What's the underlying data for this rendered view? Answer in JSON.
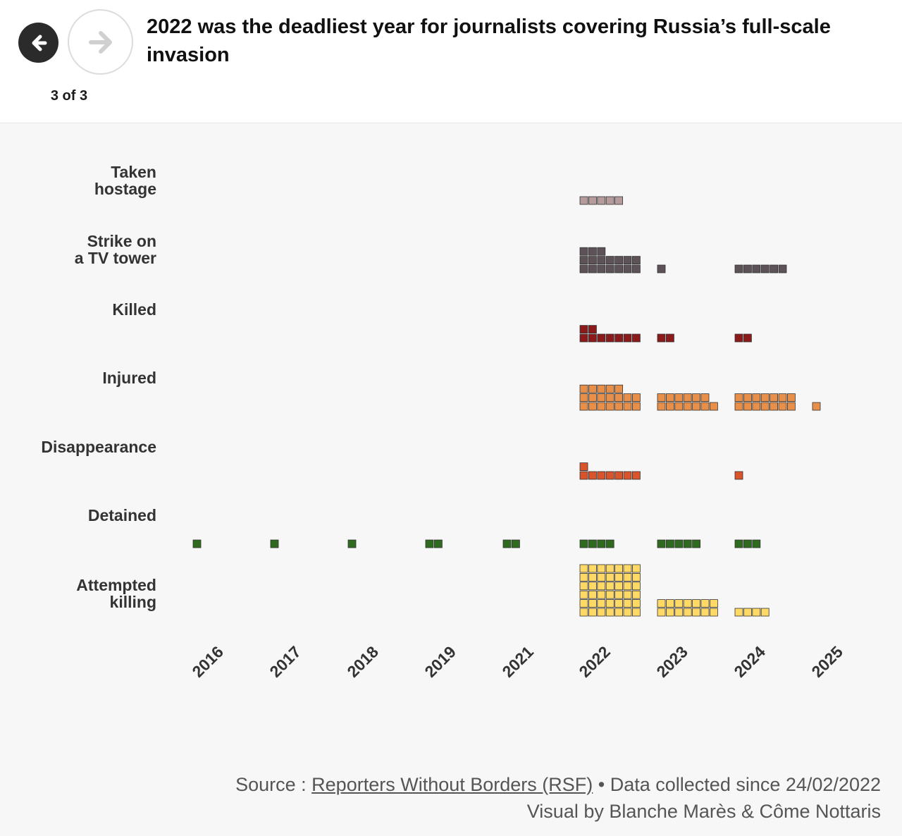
{
  "header": {
    "title": "2022 was the deadliest year for journalists covering Russia’s full-scale invasion",
    "pager": "3 of 3",
    "prev_icon": "arrow-left-icon",
    "next_icon": "arrow-right-icon"
  },
  "chart_data": {
    "type": "waffle",
    "x_labels": [
      "2016",
      "2017",
      "2018",
      "2019",
      "2021",
      "2022",
      "2023",
      "2024",
      "2025"
    ],
    "categories": [
      {
        "label_lines": [
          "Taken",
          "hostage"
        ],
        "color": "#b59b9b",
        "counts": [
          0,
          0,
          0,
          0,
          0,
          5,
          0,
          0,
          0
        ]
      },
      {
        "label_lines": [
          "Strike on",
          "a TV tower"
        ],
        "color": "#5d5258",
        "counts": [
          0,
          0,
          0,
          0,
          0,
          17,
          1,
          6,
          0
        ]
      },
      {
        "label_lines": [
          "Killed"
        ],
        "color": "#8b1a1a",
        "counts": [
          0,
          0,
          0,
          0,
          0,
          9,
          2,
          2,
          0
        ]
      },
      {
        "label_lines": [
          "Injured"
        ],
        "color": "#e8904a",
        "counts": [
          0,
          0,
          0,
          0,
          0,
          19,
          13,
          14,
          1
        ]
      },
      {
        "label_lines": [
          "Disappearance"
        ],
        "color": "#d9532b",
        "counts": [
          0,
          0,
          0,
          0,
          0,
          8,
          0,
          1,
          0
        ]
      },
      {
        "label_lines": [
          "Detained"
        ],
        "color": "#2e6b1e",
        "counts": [
          1,
          1,
          1,
          2,
          2,
          4,
          5,
          3,
          0
        ]
      },
      {
        "label_lines": [
          "Attempted",
          "killing"
        ],
        "color": "#ffd966",
        "counts": [
          0,
          0,
          0,
          0,
          0,
          42,
          14,
          4,
          0
        ]
      }
    ]
  },
  "source": {
    "prefix": "Source : ",
    "link_text": "Reporters Without Borders (RSF)",
    "suffix": " • Data collected since 24/02/2022",
    "credit": "Visual by Blanche Marès & Côme Nottaris"
  }
}
